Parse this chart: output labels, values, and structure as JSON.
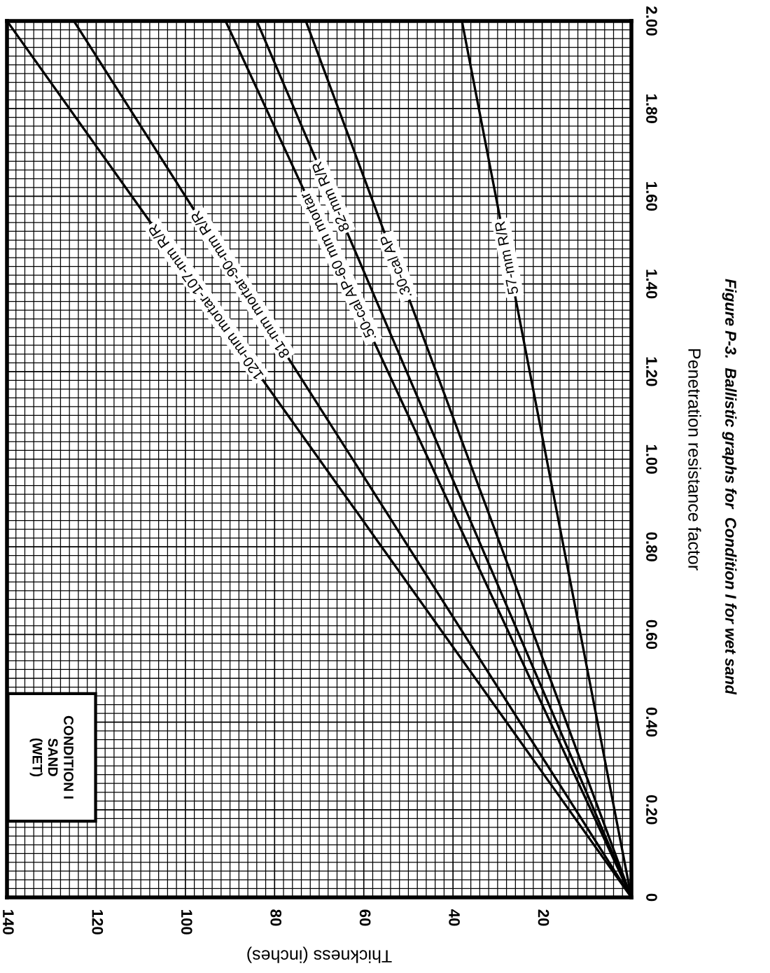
{
  "chart_data": {
    "type": "line",
    "title": "Figure P-3.  Ballistic graphs for  Condition I for wet sand",
    "xlabel": "Thickness (inches)",
    "ylabel": "Penetration resistance factor",
    "xlim": [
      140,
      0
    ],
    "xticks": [
      140,
      120,
      100,
      80,
      60,
      40,
      20
    ],
    "ylim": [
      0,
      2.0
    ],
    "yticks": [
      0,
      {
        "value": 0.2,
        "label": "0.20"
      },
      {
        "value": 0.4,
        "label": "0.40"
      },
      {
        "value": 0.6,
        "label": "0.60"
      },
      {
        "value": 0.8,
        "label": "0.80"
      },
      {
        "value": 1.0,
        "label": "1.00"
      },
      {
        "value": 1.2,
        "label": "1.20"
      },
      {
        "value": 1.4,
        "label": "1.40"
      },
      {
        "value": 1.6,
        "label": "1.60"
      },
      {
        "value": 1.8,
        "label": "1.80"
      },
      {
        "value": 2.0,
        "label": "2.00"
      }
    ],
    "grid": true,
    "annotations": [
      "CONDITION I\nSAND\n(WET)"
    ],
    "series": [
      {
        "name": "120-mm mortar-107-mm R/R",
        "color": "#000000",
        "x": [
          0,
          140
        ],
        "values": [
          0,
          2.0
        ]
      },
      {
        "name": "81-mm mortar-90-mm R/R",
        "color": "#000000",
        "x": [
          0,
          125
        ],
        "values": [
          0,
          2.0
        ]
      },
      {
        "name": ".50-cal AP-60 mm mortar",
        "color": "#000000",
        "x": [
          0,
          91
        ],
        "values": [
          0,
          2.0
        ]
      },
      {
        "name": "82-mm R/R",
        "color": "#000000",
        "x": [
          0,
          84
        ],
        "values": [
          0,
          2.0
        ]
      },
      {
        "name": ".30-cal AP",
        "color": "#000000",
        "x": [
          0,
          73
        ],
        "values": [
          0,
          2.0
        ]
      },
      {
        "name": "57-mm R/R",
        "color": "#000000",
        "x": [
          0,
          38
        ],
        "values": [
          0,
          2.0
        ]
      }
    ]
  }
}
